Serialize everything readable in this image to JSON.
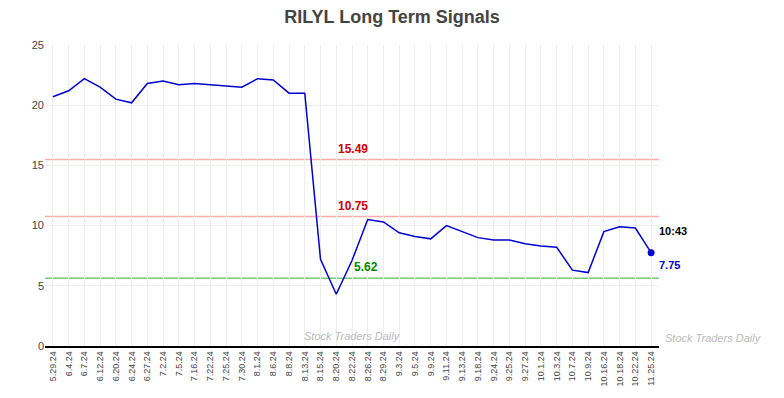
{
  "chart_data": {
    "type": "line",
    "title": "RILYL Long Term Signals",
    "categories": [
      "5.29.24",
      "6.4.24",
      "6.7.24",
      "6.12.24",
      "6.20.24",
      "6.24.24",
      "6.27.24",
      "7.2.24",
      "7.5.24",
      "7.16.24",
      "7.22.24",
      "7.25.24",
      "7.30.24",
      "8.1.24",
      "8.6.24",
      "8.8.24",
      "8.13.24",
      "8.15.24",
      "8.20.24",
      "8.22.24",
      "8.26.24",
      "8.29.24",
      "9.3.24",
      "9.5.24",
      "9.9.24",
      "9.11.24",
      "9.13.24",
      "9.18.24",
      "9.24.24",
      "9.25.24",
      "9.27.24",
      "10.1.24",
      "10.3.24",
      "10.7.24",
      "10.9.24",
      "10.16.24",
      "10.18.24",
      "10.22.24",
      "11.25.24"
    ],
    "values": [
      20.7,
      21.2,
      22.2,
      21.5,
      20.5,
      20.2,
      21.8,
      22.0,
      21.7,
      21.8,
      21.7,
      21.6,
      21.5,
      22.2,
      22.1,
      21.0,
      21.0,
      7.2,
      4.3,
      7.1,
      10.5,
      10.3,
      9.4,
      9.1,
      8.9,
      10.0,
      9.5,
      9.0,
      8.8,
      8.8,
      8.5,
      8.3,
      8.2,
      6.3,
      6.1,
      9.5,
      9.9,
      9.8,
      7.75
    ],
    "value_labels": [
      null,
      null,
      null,
      null,
      null,
      null,
      null,
      null,
      null,
      null,
      null,
      null,
      null,
      null,
      null,
      null,
      null,
      null,
      null,
      null,
      null,
      null,
      null,
      null,
      null,
      null,
      null,
      null,
      null,
      null,
      null,
      null,
      null,
      null,
      null,
      null,
      null,
      null,
      "7.75"
    ],
    "color": "#0000cc",
    "reference_lines": [
      {
        "value": 15.49,
        "color": "#ffaaaa",
        "label": "15.49",
        "label_color": "#cc0000",
        "label_at": "8.20.24"
      },
      {
        "value": 10.75,
        "color": "#ffaaaa",
        "label": "10.75",
        "label_color": "#cc0000",
        "label_at": "8.20.24"
      },
      {
        "value": 5.62,
        "color": "#77cc77",
        "label": "5.62",
        "label_color": "#008800",
        "label_at": "8.22.24"
      }
    ],
    "annotations": [
      {
        "text": "10:43",
        "at": "11.25.24"
      }
    ],
    "watermark": "Stock Traders Daily",
    "ylim": [
      0,
      25
    ],
    "yticks": [
      0,
      5,
      10,
      15,
      20,
      25
    ],
    "grid": true
  }
}
